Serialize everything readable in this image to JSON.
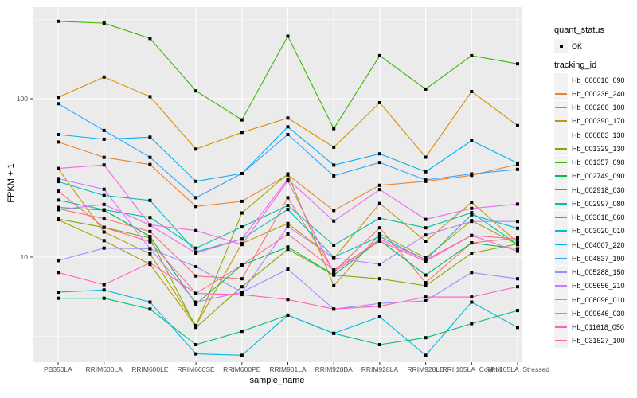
{
  "figure": {
    "xlabel": "sample_name",
    "ylabel": "FPKM + 1"
  },
  "legend": {
    "quant_status_title": "quant_status",
    "quant_status_items": [
      {
        "label": "OK",
        "symbol": "black-point"
      }
    ],
    "tracking_id_title": "tracking_id"
  },
  "colors": {
    "page_bg": "#FFFFFF",
    "panel_bg": "#EBEBEB",
    "gridline": "#FFFFFF",
    "tick_label": "#4D4D4D",
    "title_text": "#000000",
    "legend_key_bg": "#F2F2F2",
    "point": "#000000"
  },
  "chart_data": {
    "type": "line",
    "x_type": "categorical",
    "title": "",
    "xlabel": "sample_name",
    "ylabel": "FPKM + 1",
    "y_scale": "log10",
    "y_ticks": [
      10,
      100
    ],
    "y_minor_gridlines": [
      3.162,
      31.62,
      316.2
    ],
    "ylim": [
      2.1,
      380
    ],
    "grid": true,
    "legend_position": "right",
    "points": "black squares at every vertex (quant_status OK)",
    "categories": [
      "PB350LA",
      "RRIM600LA",
      "RRIM600LE",
      "RRIM600SE",
      "RRIM600PE",
      "RRIM901LA",
      "RRIM928BA",
      "RRIM928LA",
      "RRIM928LE",
      "RRII105LA_Control",
      "RRII105LA_Stressed"
    ],
    "series": [
      {
        "name": "Hb_000010_090",
        "color": "#F8766D",
        "values": [
          20.2,
          17.5,
          14.5,
          7.6,
          7.3,
          23.7,
          8.1,
          15.3,
          6.9,
          12.3,
          13.2
        ]
      },
      {
        "name": "Hb_000236_240",
        "color": "#EA8331",
        "values": [
          53.3,
          42.6,
          38.4,
          20.9,
          22.5,
          33.0,
          19.7,
          28.4,
          30.1,
          32.8,
          38.5
        ]
      },
      {
        "name": "Hb_000260_100",
        "color": "#D89000",
        "values": [
          102,
          137,
          103,
          48.1,
          61.3,
          75.5,
          49.4,
          94.4,
          42.7,
          111,
          67.7
        ]
      },
      {
        "name": "Hb_000390_170",
        "color": "#C09B00",
        "values": [
          36.2,
          14.4,
          10.5,
          3.7,
          12.2,
          16.3,
          9.8,
          21.8,
          12.6,
          22.2,
          12.4
        ]
      },
      {
        "name": "Hb_000883_130",
        "color": "#A3A500",
        "values": [
          17.2,
          12.7,
          9.0,
          3.65,
          19.0,
          33.5,
          6.6,
          14.0,
          9.9,
          17.0,
          12.0
        ]
      },
      {
        "name": "Hb_001329_130",
        "color": "#7CAE00",
        "values": [
          17.4,
          15.4,
          13.2,
          3.6,
          6.5,
          11.2,
          7.7,
          7.3,
          6.6,
          10.6,
          12.1
        ]
      },
      {
        "name": "Hb_001357_090",
        "color": "#39B600",
        "values": [
          308,
          300,
          240,
          112,
          73.5,
          248,
          64.7,
          187,
          115,
          187,
          166
        ]
      },
      {
        "name": "Hb_002749_090",
        "color": "#00BB4E",
        "values": [
          20.6,
          19.8,
          13.5,
          5.05,
          8.9,
          11.6,
          7.7,
          12.8,
          7.7,
          12.3,
          11.3
        ]
      },
      {
        "name": "Hb_002918_030",
        "color": "#00BF7D",
        "values": [
          5.5,
          5.5,
          4.7,
          2.8,
          3.4,
          4.3,
          3.3,
          2.8,
          3.1,
          3.8,
          4.6
        ]
      },
      {
        "name": "Hb_002997_080",
        "color": "#00C1A3",
        "values": [
          22.9,
          19.9,
          17.8,
          11.4,
          15.5,
          21.2,
          11.9,
          17.6,
          15.3,
          19.1,
          12.0
        ]
      },
      {
        "name": "Hb_003018_060",
        "color": "#00BFC4",
        "values": [
          30.0,
          24.5,
          22.8,
          10.8,
          13.0,
          20.0,
          10.0,
          13.5,
          9.6,
          18.5,
          15.2
        ]
      },
      {
        "name": "Hb_003020_010",
        "color": "#00BAE0",
        "values": [
          6.0,
          6.2,
          5.2,
          2.45,
          2.4,
          4.3,
          3.3,
          4.2,
          2.4,
          5.2,
          3.6
        ]
      },
      {
        "name": "Hb_004007_220",
        "color": "#00B0F6",
        "values": [
          59.4,
          55.5,
          57.2,
          30.1,
          33.7,
          66.5,
          38.1,
          44.9,
          34.6,
          54.3,
          39.2
        ]
      },
      {
        "name": "Hb_004837_190",
        "color": "#35A2FF",
        "values": [
          93,
          63,
          42.6,
          23.7,
          33.7,
          59.4,
          32.6,
          39.6,
          30.7,
          33.5,
          35.8
        ]
      },
      {
        "name": "Hb_005288_150",
        "color": "#9590FF",
        "values": [
          9.5,
          11.4,
          11.3,
          8.7,
          6.0,
          8.4,
          4.7,
          5.1,
          5.3,
          8.0,
          7.3
        ]
      },
      {
        "name": "Hb_005656_210",
        "color": "#C77CFF",
        "values": [
          31.3,
          26.8,
          11.3,
          5.2,
          6.0,
          15.6,
          9.9,
          9.0,
          13.8,
          16.8,
          16.8
        ]
      },
      {
        "name": "Hb_008096_010",
        "color": "#E76BF3",
        "values": [
          19.9,
          21.5,
          15.9,
          10.6,
          13.0,
          31.0,
          16.9,
          26.7,
          17.3,
          20.3,
          21.6
        ]
      },
      {
        "name": "Hb_009646_030",
        "color": "#FA62DB",
        "values": [
          36.3,
          38.2,
          16.0,
          14.7,
          12.0,
          30.3,
          8.0,
          13.0,
          9.6,
          13.7,
          10.9
        ]
      },
      {
        "name": "Hb_011618_050",
        "color": "#FF62BC",
        "values": [
          8.0,
          6.7,
          9.2,
          5.9,
          5.8,
          5.4,
          4.7,
          4.9,
          5.6,
          5.6,
          6.5
        ]
      },
      {
        "name": "Hb_031527_100",
        "color": "#FF6A98",
        "values": [
          26.1,
          15.4,
          12.5,
          5.9,
          8.9,
          14.0,
          8.3,
          12.6,
          9.4,
          13.7,
          13.0
        ]
      }
    ]
  }
}
